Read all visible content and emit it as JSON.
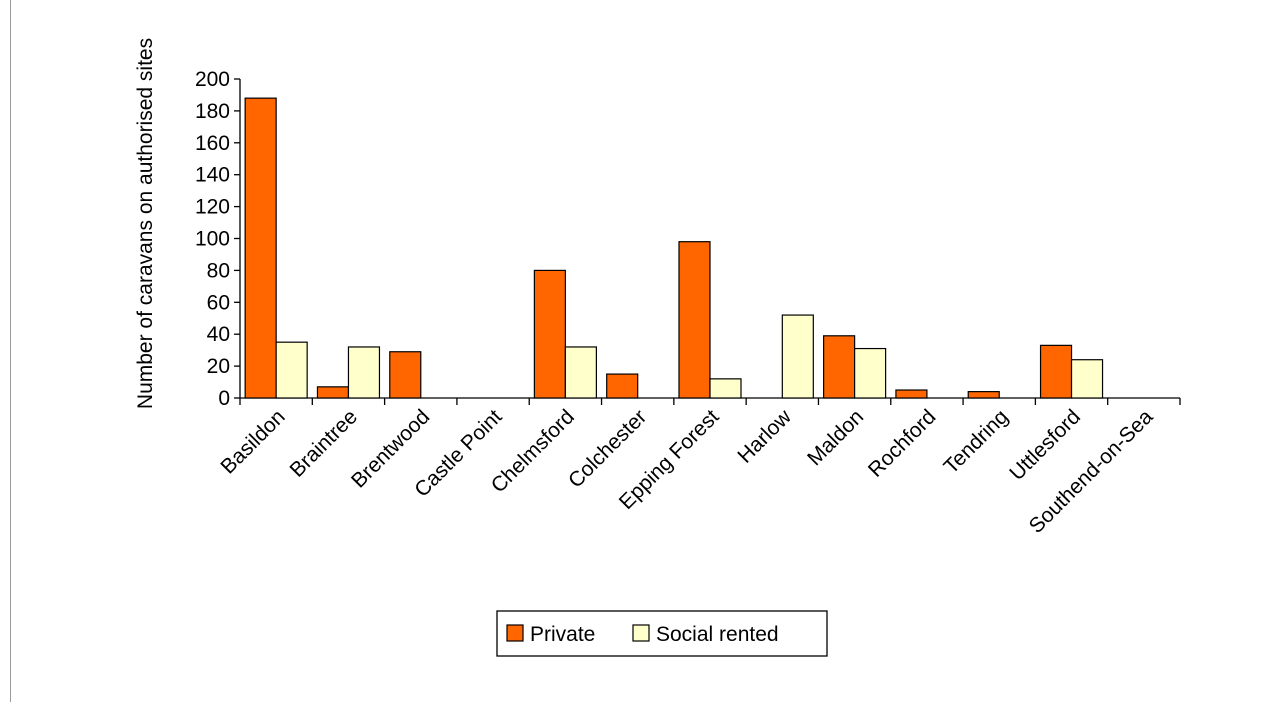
{
  "chart_data": {
    "type": "bar",
    "title": "",
    "xlabel": "",
    "ylabel": "Number of caravans on authorised sites",
    "ylim": [
      0,
      200
    ],
    "ytick_step": 20,
    "grid": false,
    "legend_position": "bottom-center",
    "categories": [
      "Basildon",
      "Braintree",
      "Brentwood",
      "Castle Point",
      "Chelmsford",
      "Colchester",
      "Epping Forest",
      "Harlow",
      "Maldon",
      "Rochford",
      "Tendring",
      "Uttlesford",
      "Southend-on-Sea"
    ],
    "series": [
      {
        "name": "Private",
        "color": "#ff6600",
        "values": [
          188,
          7,
          29,
          0,
          80,
          15,
          98,
          0,
          39,
          5,
          4,
          33,
          0
        ]
      },
      {
        "name": "Social rented",
        "color": "#ffffcc",
        "values": [
          35,
          32,
          0,
          0,
          32,
          0,
          12,
          52,
          31,
          0,
          0,
          24,
          0
        ]
      }
    ]
  }
}
